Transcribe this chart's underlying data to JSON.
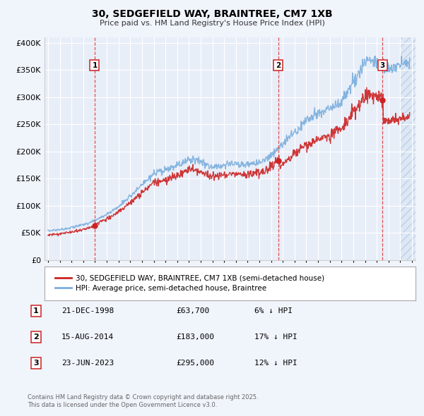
{
  "title": "30, SEDGEFIELD WAY, BRAINTREE, CM7 1XB",
  "subtitle": "Price paid vs. HM Land Registry's House Price Index (HPI)",
  "ylim": [
    0,
    410000
  ],
  "yticks": [
    0,
    50000,
    100000,
    150000,
    200000,
    250000,
    300000,
    350000,
    400000
  ],
  "ytick_labels": [
    "£0",
    "£50K",
    "£100K",
    "£150K",
    "£200K",
    "£250K",
    "£300K",
    "£350K",
    "£400K"
  ],
  "xlim_start": 1994.7,
  "xlim_end": 2026.3,
  "bg_color": "#f0f4fb",
  "plot_bg": "#e8eef8",
  "grid_color": "#ffffff",
  "sale_dates_decimal": [
    1998.97,
    2014.62,
    2023.48
  ],
  "sale_prices": [
    63700,
    183000,
    295000
  ],
  "sale_labels": [
    "1",
    "2",
    "3"
  ],
  "sale_info": [
    {
      "num": "1",
      "date": "21-DEC-1998",
      "price": "£63,700",
      "pct": "6% ↓ HPI"
    },
    {
      "num": "2",
      "date": "15-AUG-2014",
      "price": "£183,000",
      "pct": "17% ↓ HPI"
    },
    {
      "num": "3",
      "date": "23-JUN-2023",
      "price": "£295,000",
      "pct": "12% ↓ HPI"
    }
  ],
  "legend_line1": "30, SEDGEFIELD WAY, BRAINTREE, CM7 1XB (semi-detached house)",
  "legend_line2": "HPI: Average price, semi-detached house, Braintree",
  "footer1": "Contains HM Land Registry data © Crown copyright and database right 2025.",
  "footer2": "This data is licensed under the Open Government Licence v3.0.",
  "hpi_color": "#7aaedd",
  "price_color": "#cc2222",
  "vline_color": "#dd3333",
  "hatch_facecolor": "#dde8f5",
  "hatch_edgecolor": "#c0d0e8",
  "marker_box_edge": "#cc2222"
}
